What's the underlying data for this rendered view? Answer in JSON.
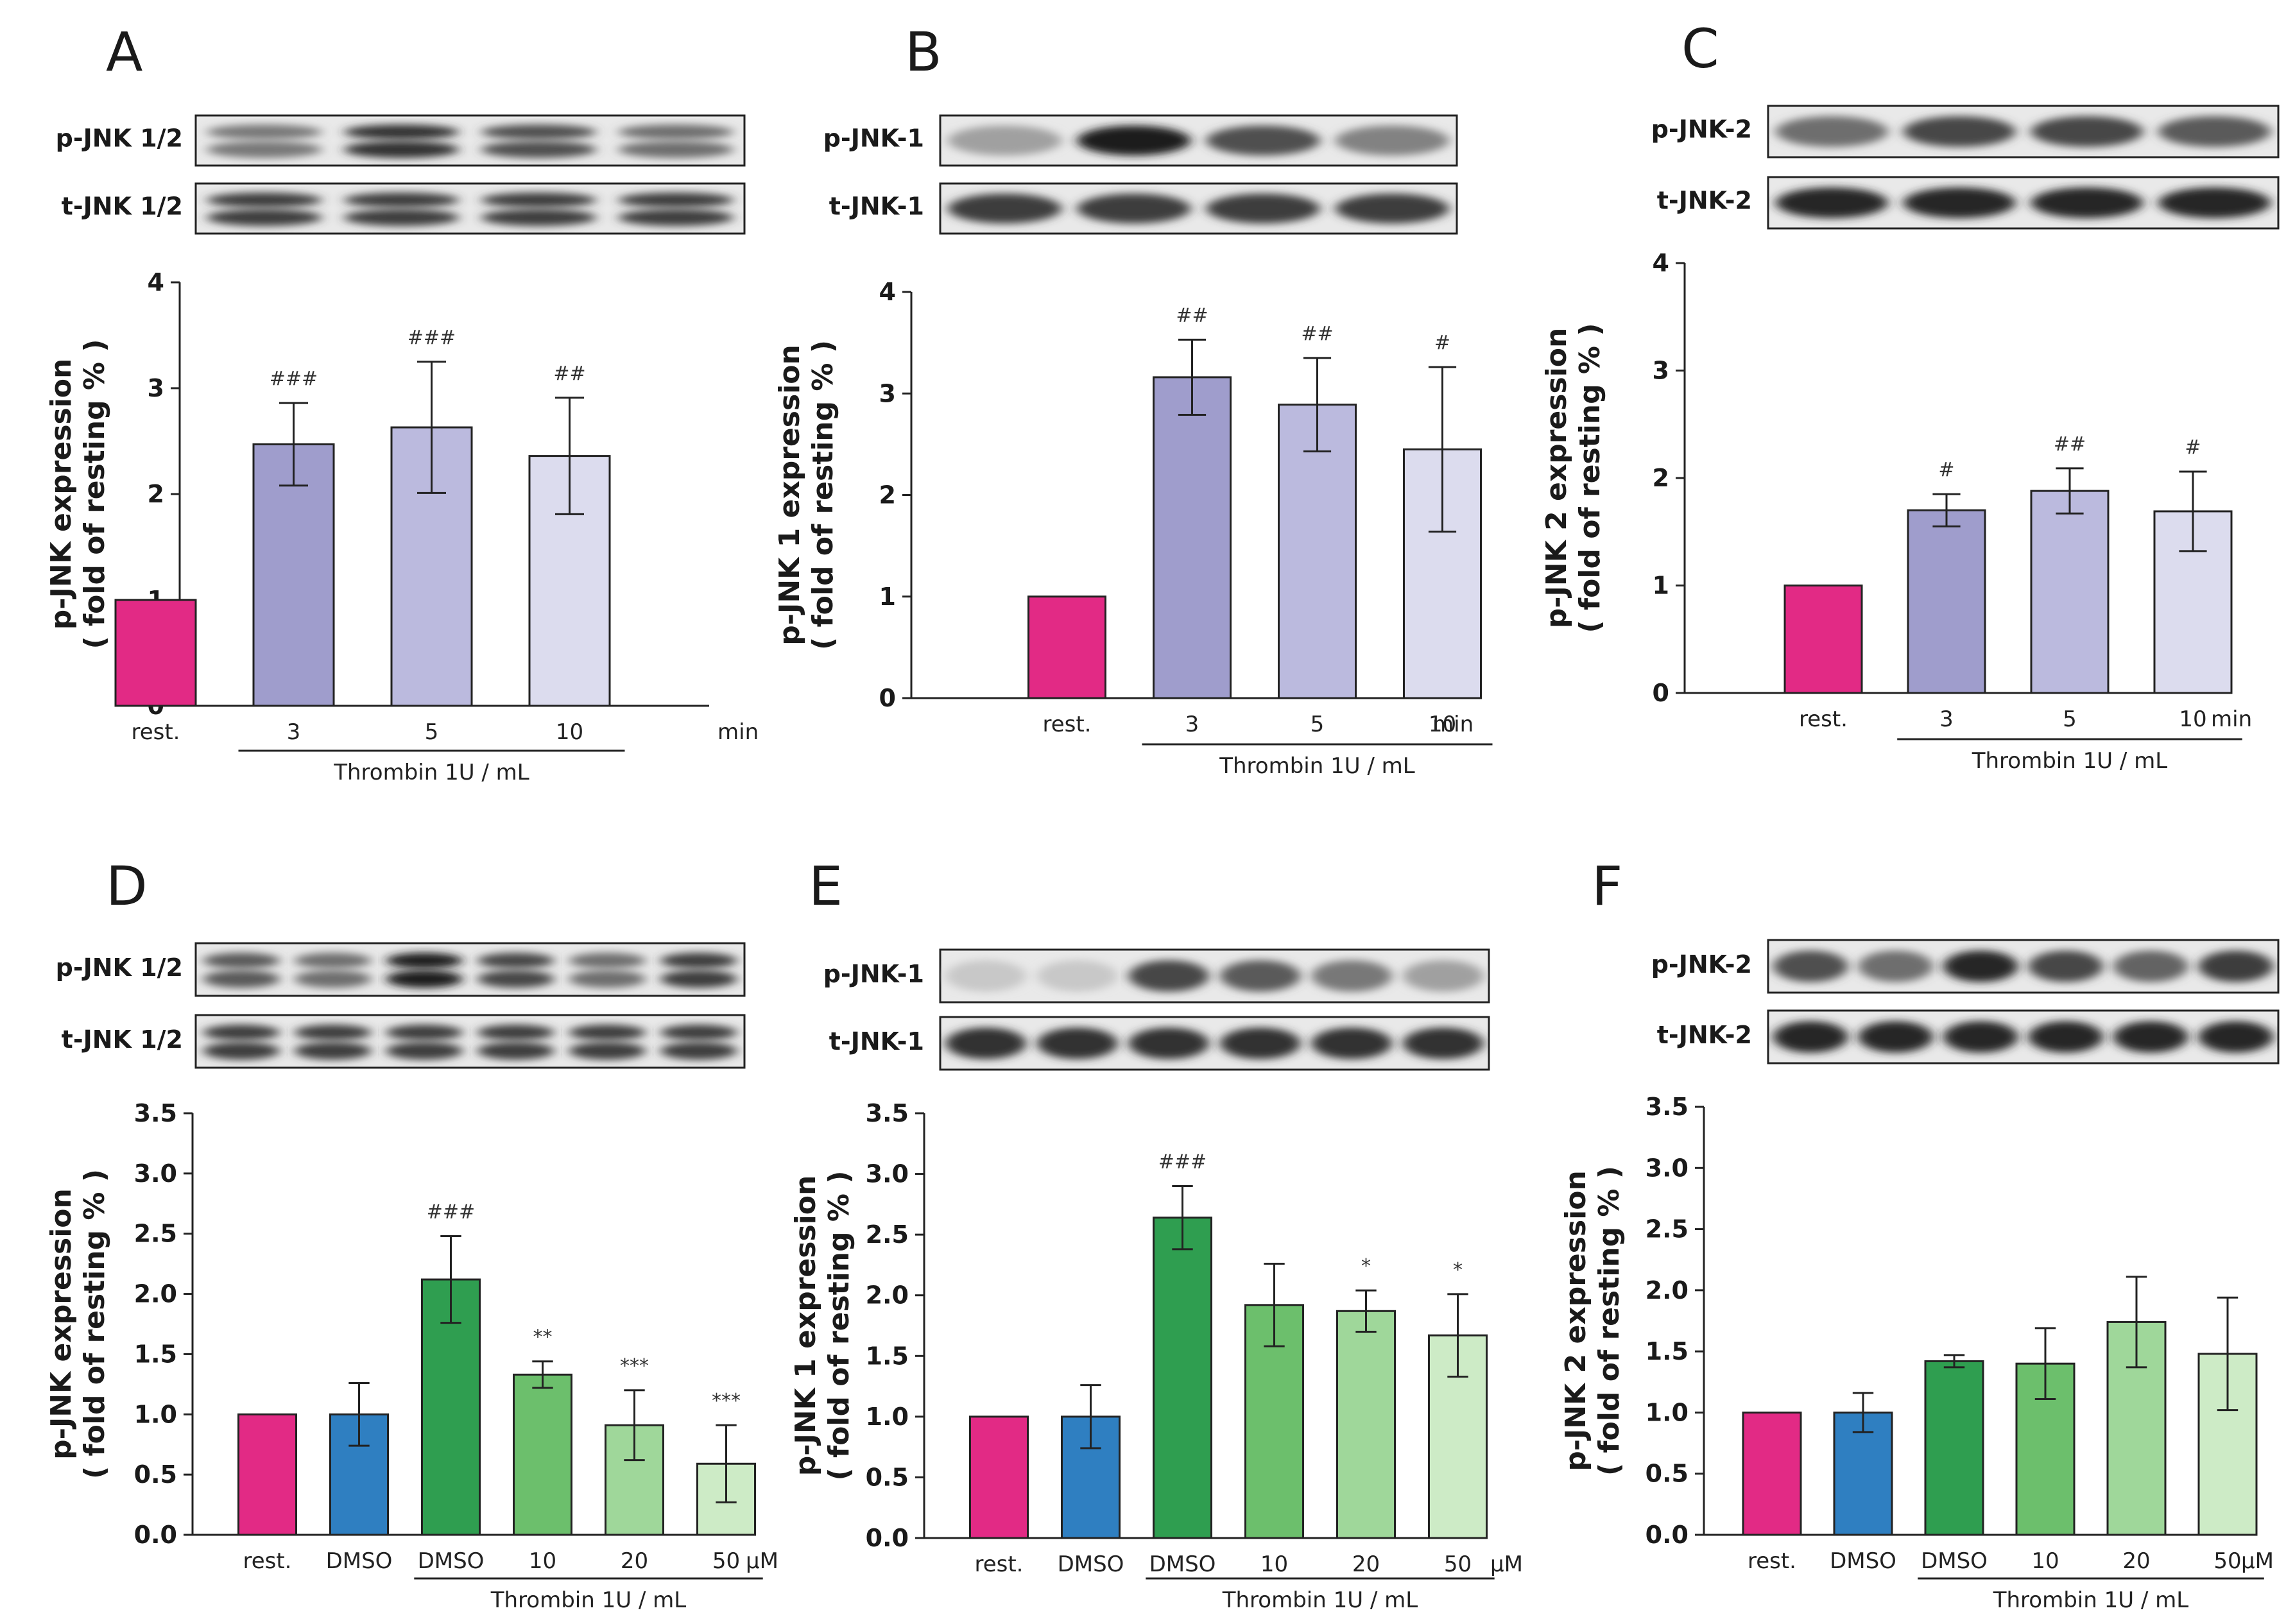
{
  "chart_data": [
    {
      "panel": "A",
      "type": "bar",
      "blots": [
        "p-JNK 1/2",
        "t-JNK 1/2"
      ],
      "blot_lanes": 4,
      "ylabel_line1": "p-JNK  expression",
      "ylabel_line2": "( fold of resting % )",
      "ylim": [
        0,
        4
      ],
      "yticks": [
        "0",
        "1",
        "2",
        "3",
        "4"
      ],
      "categories": [
        "rest.",
        "3",
        "5",
        "10"
      ],
      "unit": "min",
      "group_label": "Thrombin 1U / mL",
      "group_start": 1,
      "values": [
        1.0,
        2.47,
        2.63,
        2.36
      ],
      "errors": [
        0,
        0.39,
        0.62,
        0.55
      ],
      "annotations": [
        "",
        "###",
        "###",
        "##"
      ],
      "colors": [
        "#e22a85",
        "#9f9dcc",
        "#bbbade",
        "#dcdcee"
      ]
    },
    {
      "panel": "B",
      "type": "bar",
      "blots": [
        "p-JNK-1",
        "t-JNK-1"
      ],
      "blot_lanes": 4,
      "ylabel_line1": "p-JNK 1  expression",
      "ylabel_line2": "( fold of resting % )",
      "ylim": [
        0,
        4
      ],
      "yticks": [
        "0",
        "1",
        "2",
        "3",
        "4"
      ],
      "categories": [
        "rest.",
        "3",
        "5",
        "10"
      ],
      "unit": "min",
      "group_label": "Thrombin 1U / mL",
      "group_start": 1,
      "values": [
        1.0,
        3.16,
        2.89,
        2.45
      ],
      "errors": [
        0,
        0.37,
        0.46,
        0.81
      ],
      "annotations": [
        "",
        "##",
        "##",
        "#"
      ],
      "colors": [
        "#e22a85",
        "#9f9dcc",
        "#bbbade",
        "#dcdcee"
      ]
    },
    {
      "panel": "C",
      "type": "bar",
      "blots": [
        "p-JNK-2",
        "t-JNK-2"
      ],
      "blot_lanes": 4,
      "ylabel_line1": "p-JNK 2  expression",
      "ylabel_line2": "( fold of resting % )",
      "ylim": [
        0,
        4
      ],
      "yticks": [
        "0",
        "1",
        "2",
        "3",
        "4"
      ],
      "categories": [
        "rest.",
        "3",
        "5",
        "10"
      ],
      "unit": "min",
      "group_label": "Thrombin 1U / mL",
      "group_start": 1,
      "values": [
        1.0,
        1.7,
        1.88,
        1.69
      ],
      "errors": [
        0,
        0.15,
        0.21,
        0.37
      ],
      "annotations": [
        "",
        "#",
        "##",
        "#"
      ],
      "colors": [
        "#e22a85",
        "#9f9dcc",
        "#bbbade",
        "#dcdcee"
      ]
    },
    {
      "panel": "D",
      "type": "bar",
      "blots": [
        "p-JNK 1/2",
        "t-JNK 1/2"
      ],
      "blot_lanes": 6,
      "ylabel_line1": "p-JNK  expression",
      "ylabel_line2": "( fold of resting % )",
      "ylim": [
        0,
        3.5
      ],
      "yticks": [
        "0.0",
        "0.5",
        "1.0",
        "1.5",
        "2.0",
        "2.5",
        "3.0",
        "3.5"
      ],
      "categories": [
        "rest.",
        "DMSO",
        "DMSO",
        "10",
        "20",
        "50"
      ],
      "unit": "μM",
      "group_label": "Thrombin 1U / mL",
      "group_start": 2,
      "values": [
        1.0,
        1.0,
        2.12,
        1.33,
        0.91,
        0.59
      ],
      "errors": [
        0,
        0.26,
        0.36,
        0.11,
        0.29,
        0.32
      ],
      "annotations": [
        "",
        "",
        "###",
        "**",
        "***",
        "***"
      ],
      "colors": [
        "#e22a85",
        "#2f7fc1",
        "#2f9e50",
        "#6cbf6c",
        "#9fd79a",
        "#cdebc6"
      ]
    },
    {
      "panel": "E",
      "type": "bar",
      "blots": [
        "p-JNK-1",
        "t-JNK-1"
      ],
      "blot_lanes": 6,
      "ylabel_line1": "p-JNK 1  expression",
      "ylabel_line2": "( fold of resting % )",
      "ylim": [
        0,
        3.5
      ],
      "yticks": [
        "0.0",
        "0.5",
        "1.0",
        "1.5",
        "2.0",
        "2.5",
        "3.0",
        "3.5"
      ],
      "categories": [
        "rest.",
        "DMSO",
        "DMSO",
        "10",
        "20",
        "50"
      ],
      "unit": "μM",
      "group_label": "Thrombin 1U / mL",
      "group_start": 2,
      "values": [
        1.0,
        1.0,
        2.64,
        1.92,
        1.87,
        1.67
      ],
      "errors": [
        0,
        0.26,
        0.26,
        0.34,
        0.17,
        0.34
      ],
      "annotations": [
        "",
        "",
        "###",
        "",
        "*",
        "*"
      ],
      "colors": [
        "#e22a85",
        "#2f7fc1",
        "#2f9e50",
        "#6cbf6c",
        "#9fd79a",
        "#cdebc6"
      ]
    },
    {
      "panel": "F",
      "type": "bar",
      "blots": [
        "p-JNK-2",
        "t-JNK-2"
      ],
      "blot_lanes": 6,
      "ylabel_line1": "p-JNK 2  expression",
      "ylabel_line2": "( fold of resting % )",
      "ylim": [
        0,
        3.5
      ],
      "yticks": [
        "0.0",
        "0.5",
        "1.0",
        "1.5",
        "2.0",
        "2.5",
        "3.0",
        "3.5"
      ],
      "categories": [
        "rest.",
        "DMSO",
        "DMSO",
        "10",
        "20",
        "50"
      ],
      "unit": "μM",
      "group_label": "Thrombin 1U / mL",
      "group_start": 2,
      "values": [
        1.0,
        1.0,
        1.42,
        1.4,
        1.74,
        1.48
      ],
      "errors": [
        0,
        0.16,
        0.05,
        0.29,
        0.37,
        0.46
      ],
      "annotations": [
        "",
        "",
        "",
        "",
        "",
        ""
      ],
      "colors": [
        "#e22a85",
        "#2f7fc1",
        "#2f9e50",
        "#6cbf6c",
        "#9fd79a",
        "#cdebc6"
      ]
    }
  ]
}
